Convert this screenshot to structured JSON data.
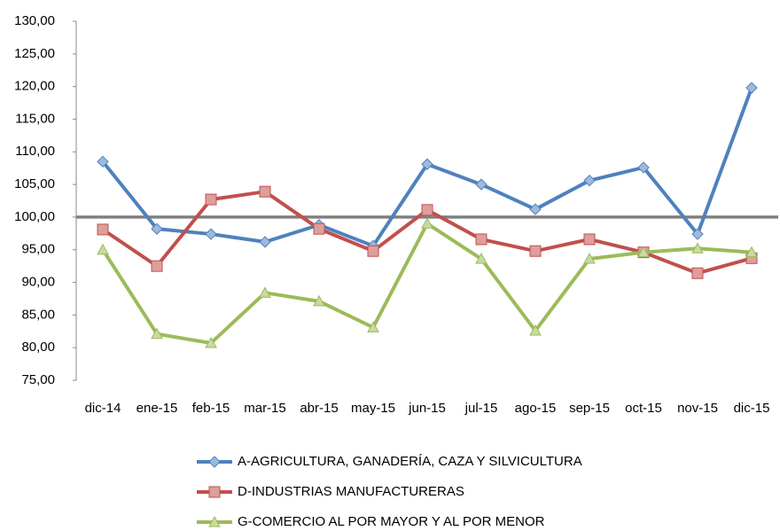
{
  "chart_data": {
    "type": "line",
    "categories": [
      "dic-14",
      "ene-15",
      "feb-15",
      "mar-15",
      "abr-15",
      "may-15",
      "jun-15",
      "jul-15",
      "ago-15",
      "sep-15",
      "oct-15",
      "nov-15",
      "dic-15"
    ],
    "series": [
      {
        "name": "A-AGRICULTURA, GANADERÍA, CAZA Y SILVICULTURA",
        "color": "#4f81bd",
        "marker": "diamond",
        "values": [
          108.5,
          98.2,
          97.4,
          96.2,
          98.8,
          95.6,
          108.1,
          105.0,
          101.2,
          105.6,
          107.6,
          97.4,
          119.8
        ]
      },
      {
        "name": "D-INDUSTRIAS MANUFACTURERAS",
        "color": "#c0504d",
        "marker": "square",
        "values": [
          98.1,
          92.5,
          102.7,
          103.9,
          98.2,
          94.8,
          101.1,
          96.6,
          94.8,
          96.6,
          94.6,
          91.4,
          93.7
        ]
      },
      {
        "name": "G-COMERCIO AL POR MAYOR Y AL POR MENOR",
        "color": "#9bbb59",
        "marker": "triangle",
        "values": [
          95.0,
          82.1,
          80.7,
          88.4,
          87.1,
          83.1,
          99.0,
          93.6,
          82.6,
          93.6,
          94.6,
          95.2,
          94.6
        ]
      }
    ],
    "reference_line": 100,
    "ylim": [
      75,
      130
    ],
    "yticks": [
      {
        "value": 75,
        "label": "75,00"
      },
      {
        "value": 80,
        "label": "80,00"
      },
      {
        "value": 85,
        "label": "85,00"
      },
      {
        "value": 90,
        "label": "90,00"
      },
      {
        "value": 95,
        "label": "95,00"
      },
      {
        "value": 100,
        "label": "100,00"
      },
      {
        "value": 105,
        "label": "105,00"
      },
      {
        "value": 110,
        "label": "110,00"
      },
      {
        "value": 115,
        "label": "115,00"
      },
      {
        "value": 120,
        "label": "120,00"
      },
      {
        "value": 125,
        "label": "125,00"
      },
      {
        "value": 130,
        "label": "130,00"
      }
    ],
    "grid": false,
    "legend": "bottom"
  }
}
